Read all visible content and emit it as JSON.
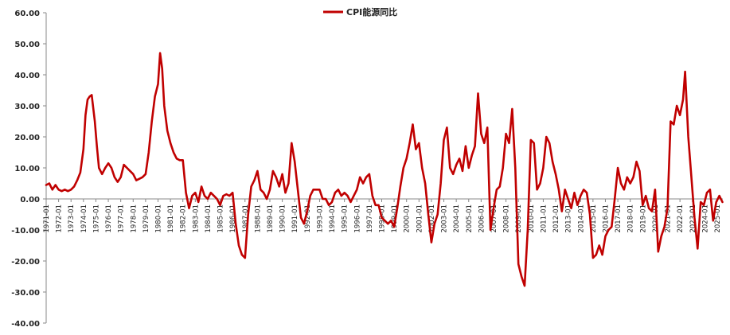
{
  "chart_data": {
    "type": "line",
    "title": "",
    "xlabel": "",
    "ylabel": "",
    "ylim": [
      -40,
      60
    ],
    "yticks": [
      60,
      50,
      40,
      30,
      20,
      10,
      0,
      -10,
      -20,
      -30,
      -40
    ],
    "ytick_labels": [
      "60.00",
      "50.00",
      "40.00",
      "30.00",
      "20.00",
      "10.00",
      "0.00",
      "-10.00",
      "-20.00",
      "-30.00",
      "-40.00"
    ],
    "grid": false,
    "legend_position": "top-center",
    "series_color": "#c00000",
    "x_tick_labels": [
      "1971-01",
      "1972-01",
      "1973-01",
      "1974-01",
      "1975-01",
      "1976-01",
      "1977-01",
      "1978-01",
      "1979-01",
      "1980-01",
      "1981-01",
      "1982-01",
      "1983-01",
      "1984-01",
      "1985-01",
      "1986-01",
      "1987-01",
      "1988-01",
      "1989-01",
      "1990-01",
      "1991-01",
      "1992-01",
      "1993-01",
      "1994-01",
      "1995-01",
      "1996-01",
      "1997-01",
      "1998-01",
      "1999-01",
      "2000-01",
      "2001-01",
      "2002-01",
      "2003-01",
      "2004-01",
      "2005-01",
      "2006-01",
      "2007-01",
      "2008-01",
      "2009-01",
      "2010-01",
      "2011-01",
      "2012-01",
      "2013-01",
      "2014-01",
      "2015-01",
      "2016-01",
      "2017-01",
      "2018-01",
      "2019-01",
      "2020-01",
      "2021-01",
      "2022-01",
      "2023-01",
      "2024-01",
      "2025-01"
    ],
    "series": [
      {
        "name": "CPI能源同比",
        "points": [
          [
            "1971-01",
            4.5
          ],
          [
            "1971-04",
            5
          ],
          [
            "1971-07",
            3
          ],
          [
            "1971-10",
            4.5
          ],
          [
            "1972-01",
            3
          ],
          [
            "1972-04",
            2.5
          ],
          [
            "1972-07",
            3
          ],
          [
            "1972-10",
            2.5
          ],
          [
            "1973-01",
            3
          ],
          [
            "1973-04",
            4
          ],
          [
            "1973-07",
            6
          ],
          [
            "1973-10",
            8.5
          ],
          [
            "1974-01",
            16
          ],
          [
            "1974-03",
            27
          ],
          [
            "1974-05",
            32
          ],
          [
            "1974-07",
            33
          ],
          [
            "1974-09",
            33.5
          ],
          [
            "1974-12",
            25
          ],
          [
            "1975-02",
            17
          ],
          [
            "1975-04",
            10
          ],
          [
            "1975-07",
            8
          ],
          [
            "1975-10",
            10
          ],
          [
            "1976-01",
            11.5
          ],
          [
            "1976-04",
            10
          ],
          [
            "1976-07",
            7
          ],
          [
            "1976-10",
            5.5
          ],
          [
            "1977-01",
            7
          ],
          [
            "1977-04",
            11
          ],
          [
            "1977-07",
            10
          ],
          [
            "1977-10",
            9
          ],
          [
            "1978-01",
            8
          ],
          [
            "1978-04",
            6
          ],
          [
            "1978-07",
            6.5
          ],
          [
            "1978-10",
            7
          ],
          [
            "1979-01",
            8
          ],
          [
            "1979-04",
            15
          ],
          [
            "1979-07",
            25
          ],
          [
            "1979-10",
            33
          ],
          [
            "1980-01",
            37
          ],
          [
            "1980-03",
            47
          ],
          [
            "1980-05",
            42
          ],
          [
            "1980-07",
            30
          ],
          [
            "1980-10",
            22
          ],
          [
            "1981-01",
            18
          ],
          [
            "1981-04",
            15
          ],
          [
            "1981-07",
            13
          ],
          [
            "1981-10",
            12.5
          ],
          [
            "1982-01",
            12.5
          ],
          [
            "1982-04",
            2
          ],
          [
            "1982-07",
            -3
          ],
          [
            "1982-10",
            1
          ],
          [
            "1983-01",
            2
          ],
          [
            "1983-04",
            -1
          ],
          [
            "1983-07",
            4
          ],
          [
            "1983-10",
            1
          ],
          [
            "1984-01",
            0
          ],
          [
            "1984-04",
            2
          ],
          [
            "1984-07",
            1
          ],
          [
            "1984-10",
            0
          ],
          [
            "1985-01",
            -2
          ],
          [
            "1985-04",
            1
          ],
          [
            "1985-07",
            1.5
          ],
          [
            "1985-10",
            1
          ],
          [
            "1986-01",
            2
          ],
          [
            "1986-04",
            -8
          ],
          [
            "1986-07",
            -15
          ],
          [
            "1986-10",
            -18
          ],
          [
            "1987-01",
            -19
          ],
          [
            "1987-04",
            -5
          ],
          [
            "1987-07",
            4
          ],
          [
            "1987-10",
            6
          ],
          [
            "1988-01",
            9
          ],
          [
            "1988-04",
            3
          ],
          [
            "1988-07",
            2
          ],
          [
            "1988-10",
            0
          ],
          [
            "1989-01",
            3
          ],
          [
            "1989-04",
            9
          ],
          [
            "1989-07",
            7
          ],
          [
            "1989-10",
            4
          ],
          [
            "1990-01",
            8
          ],
          [
            "1990-04",
            2
          ],
          [
            "1990-07",
            5
          ],
          [
            "1990-10",
            18
          ],
          [
            "1991-01",
            12
          ],
          [
            "1991-04",
            3
          ],
          [
            "1991-07",
            -6
          ],
          [
            "1991-10",
            -8
          ],
          [
            "1992-01",
            -4
          ],
          [
            "1992-04",
            1
          ],
          [
            "1992-07",
            3
          ],
          [
            "1992-10",
            3
          ],
          [
            "1993-01",
            3
          ],
          [
            "1993-04",
            0
          ],
          [
            "1993-07",
            0
          ],
          [
            "1993-10",
            -2
          ],
          [
            "1994-01",
            -1
          ],
          [
            "1994-04",
            2
          ],
          [
            "1994-07",
            3
          ],
          [
            "1994-10",
            1
          ],
          [
            "1995-01",
            2
          ],
          [
            "1995-04",
            1
          ],
          [
            "1995-07",
            -1
          ],
          [
            "1995-10",
            1
          ],
          [
            "1996-01",
            3
          ],
          [
            "1996-04",
            7
          ],
          [
            "1996-07",
            5
          ],
          [
            "1996-10",
            7
          ],
          [
            "1997-01",
            8
          ],
          [
            "1997-04",
            1
          ],
          [
            "1997-07",
            -2
          ],
          [
            "1997-10",
            -2
          ],
          [
            "1998-01",
            -6
          ],
          [
            "1998-04",
            -7
          ],
          [
            "1998-07",
            -8
          ],
          [
            "1998-10",
            -7
          ],
          [
            "1999-01",
            -9
          ],
          [
            "1999-04",
            -3
          ],
          [
            "1999-07",
            4
          ],
          [
            "1999-10",
            10
          ],
          [
            "2000-01",
            13
          ],
          [
            "2000-04",
            18
          ],
          [
            "2000-07",
            24
          ],
          [
            "2000-10",
            16
          ],
          [
            "2001-01",
            18
          ],
          [
            "2001-04",
            10
          ],
          [
            "2001-07",
            5
          ],
          [
            "2001-10",
            -5
          ],
          [
            "2002-01",
            -14
          ],
          [
            "2002-04",
            -8
          ],
          [
            "2002-07",
            -5
          ],
          [
            "2002-10",
            5
          ],
          [
            "2003-01",
            19
          ],
          [
            "2003-04",
            23
          ],
          [
            "2003-07",
            10
          ],
          [
            "2003-10",
            8
          ],
          [
            "2004-01",
            11
          ],
          [
            "2004-04",
            13
          ],
          [
            "2004-07",
            9
          ],
          [
            "2004-10",
            17
          ],
          [
            "2005-01",
            10
          ],
          [
            "2005-04",
            14
          ],
          [
            "2005-07",
            17
          ],
          [
            "2005-10",
            34
          ],
          [
            "2006-01",
            21
          ],
          [
            "2006-04",
            18
          ],
          [
            "2006-07",
            23
          ],
          [
            "2006-10",
            -10
          ],
          [
            "2007-01",
            -3
          ],
          [
            "2007-04",
            3
          ],
          [
            "2007-07",
            4
          ],
          [
            "2007-10",
            10
          ],
          [
            "2008-01",
            21
          ],
          [
            "2008-04",
            18
          ],
          [
            "2008-07",
            29
          ],
          [
            "2008-10",
            10
          ],
          [
            "2009-01",
            -21
          ],
          [
            "2009-04",
            -25
          ],
          [
            "2009-07",
            -28
          ],
          [
            "2009-10",
            -10
          ],
          [
            "2010-01",
            19
          ],
          [
            "2010-04",
            18
          ],
          [
            "2010-07",
            3
          ],
          [
            "2010-10",
            5
          ],
          [
            "2011-01",
            10
          ],
          [
            "2011-04",
            20
          ],
          [
            "2011-07",
            18
          ],
          [
            "2011-10",
            12
          ],
          [
            "2012-01",
            8
          ],
          [
            "2012-04",
            3
          ],
          [
            "2012-07",
            -4
          ],
          [
            "2012-10",
            3
          ],
          [
            "2013-01",
            0
          ],
          [
            "2013-04",
            -3
          ],
          [
            "2013-07",
            2
          ],
          [
            "2013-10",
            -2
          ],
          [
            "2014-01",
            1
          ],
          [
            "2014-04",
            3
          ],
          [
            "2014-07",
            2
          ],
          [
            "2014-10",
            -5
          ],
          [
            "2015-01",
            -19
          ],
          [
            "2015-04",
            -18
          ],
          [
            "2015-07",
            -15
          ],
          [
            "2015-10",
            -18
          ],
          [
            "2016-01",
            -12
          ],
          [
            "2016-04",
            -10
          ],
          [
            "2016-07",
            -9
          ],
          [
            "2016-10",
            0
          ],
          [
            "2017-01",
            10
          ],
          [
            "2017-04",
            5
          ],
          [
            "2017-07",
            3
          ],
          [
            "2017-10",
            7
          ],
          [
            "2018-01",
            5
          ],
          [
            "2018-04",
            7
          ],
          [
            "2018-07",
            12
          ],
          [
            "2018-10",
            9
          ],
          [
            "2019-01",
            -2
          ],
          [
            "2019-04",
            1
          ],
          [
            "2019-07",
            -3
          ],
          [
            "2019-10",
            -4
          ],
          [
            "2020-01",
            3
          ],
          [
            "2020-04",
            -17
          ],
          [
            "2020-07",
            -12
          ],
          [
            "2020-10",
            -9
          ],
          [
            "2021-01",
            -3
          ],
          [
            "2021-04",
            25
          ],
          [
            "2021-07",
            24
          ],
          [
            "2021-10",
            30
          ],
          [
            "2022-01",
            27
          ],
          [
            "2022-04",
            32
          ],
          [
            "2022-06",
            41
          ],
          [
            "2022-09",
            20
          ],
          [
            "2022-12",
            7
          ],
          [
            "2023-03",
            -6
          ],
          [
            "2023-06",
            -16
          ],
          [
            "2023-09",
            -1
          ],
          [
            "2023-12",
            -2
          ],
          [
            "2024-03",
            2
          ],
          [
            "2024-06",
            3
          ],
          [
            "2024-09",
            -7
          ],
          [
            "2024-12",
            -1
          ],
          [
            "2025-03",
            1
          ],
          [
            "2025-06",
            -1
          ]
        ]
      }
    ]
  }
}
